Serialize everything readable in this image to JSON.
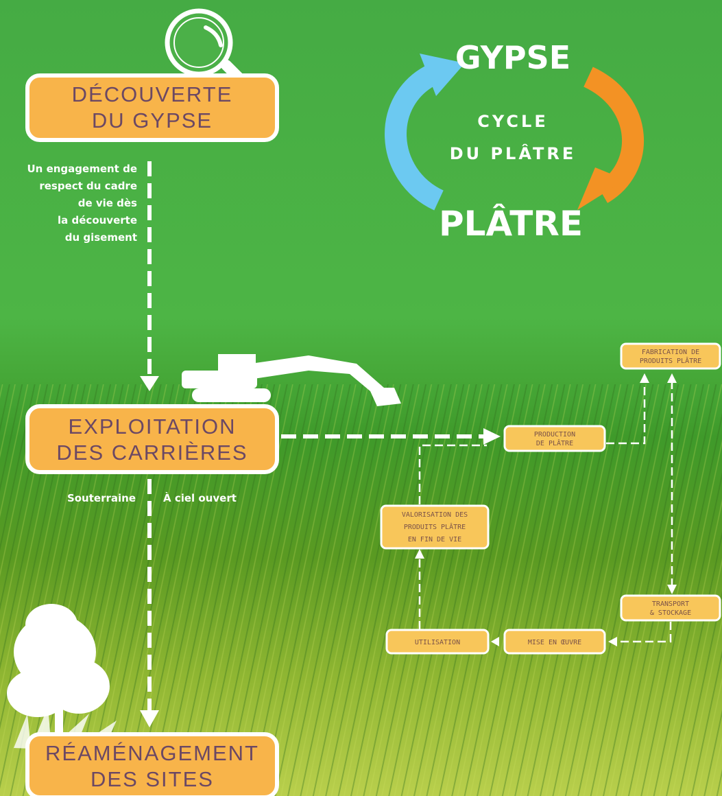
{
  "cycle": {
    "top": "GYPSE",
    "center": [
      "CYCLE",
      "DU PLÂTRE"
    ],
    "bottom": "PLÂTRE"
  },
  "steps": [
    {
      "lines": [
        "DÉCOUVERTE",
        "DU GYPSE"
      ]
    },
    {
      "lines": [
        "EXPLOITATION",
        "DES CARRIÈRES"
      ]
    },
    {
      "lines": [
        "RÉAMÉNAGEMENT",
        "DES SITES"
      ]
    }
  ],
  "notes": {
    "discovery": [
      "Un engagement de",
      "respect du cadre",
      "de vie dès",
      "la découverte",
      "du gisement"
    ],
    "quarry_left": "Souterraine",
    "quarry_right": "À ciel ouvert"
  },
  "nodes": [
    {
      "lines": [
        "PRODUCTION",
        "DE PLÂTRE"
      ]
    },
    {
      "lines": [
        "FABRICATION DE",
        "PRODUITS PLÂTRE"
      ]
    },
    {
      "lines": [
        "TRANSPORT",
        "& STOCKAGE"
      ]
    },
    {
      "lines": [
        "MISE EN ŒUVRE"
      ]
    },
    {
      "lines": [
        "UTILISATION"
      ]
    },
    {
      "lines": [
        "VALORISATION DES",
        "PRODUITS PLÂTRE",
        "EN FIN DE VIE"
      ]
    }
  ]
}
